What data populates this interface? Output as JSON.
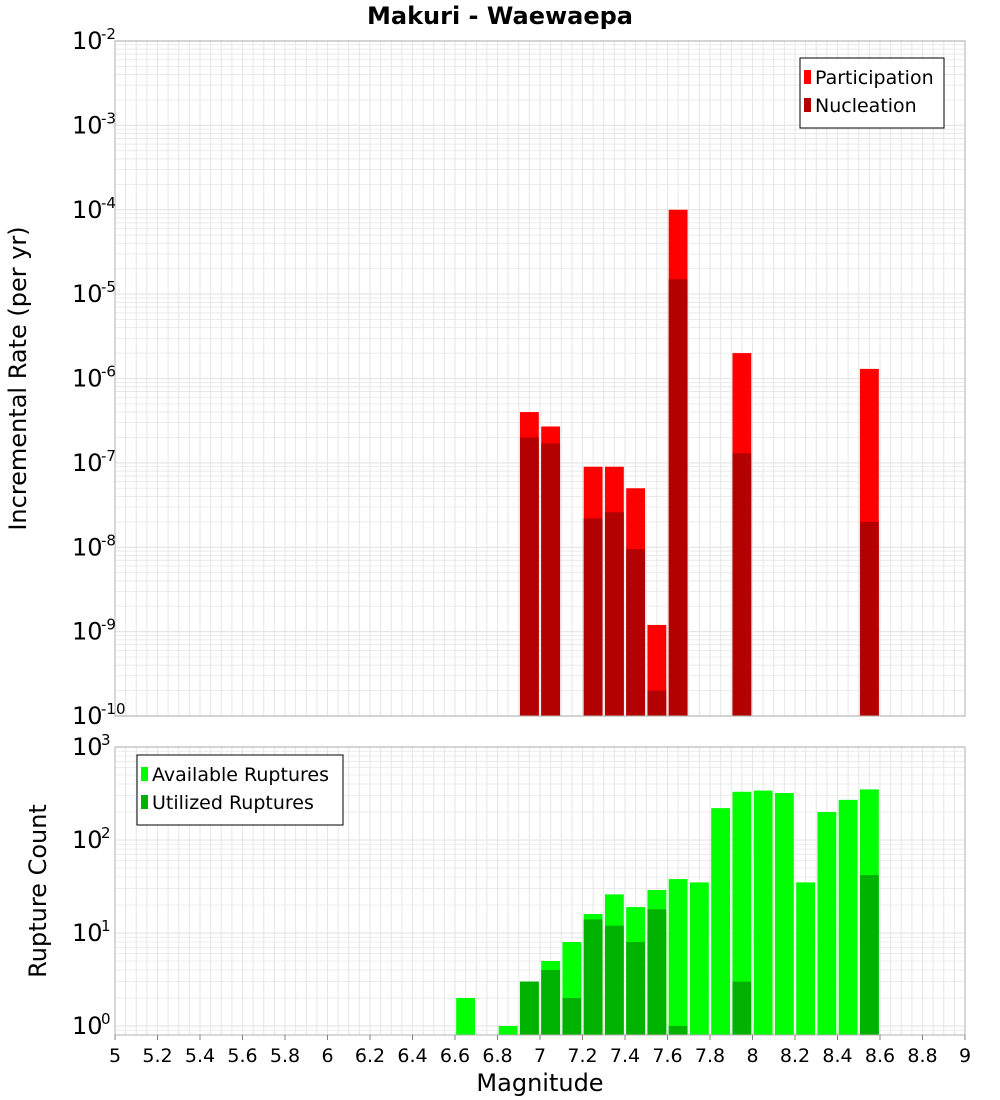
{
  "title": "Makuri - Waewaepa",
  "colors": {
    "participation": "#ff0000",
    "nucleation": "#b30000",
    "available": "#00ff00",
    "utilized": "#00b200",
    "grid": "#e6e6e6",
    "frame": "#b0b0b0"
  },
  "chart_data": [
    {
      "type": "bar",
      "name": "incremental-rate",
      "title": "",
      "xlabel": "",
      "ylabel": "Incremental Rate (per yr)",
      "yscale": "log",
      "xlim": [
        5,
        9
      ],
      "ylim": [
        1e-10,
        0.01
      ],
      "ytick_exponents": [
        -10,
        -9,
        -8,
        -7,
        -6,
        -5,
        -4,
        -3,
        -2
      ],
      "bin_width": 0.1,
      "legend": {
        "placement": "top-right",
        "entries": [
          "Participation",
          "Nucleation"
        ]
      },
      "series": [
        {
          "name": "Participation",
          "color_key": "participation",
          "x": [
            6.95,
            7.05,
            7.25,
            7.35,
            7.45,
            7.55,
            7.65,
            7.95,
            8.55
          ],
          "values": [
            4e-07,
            2.7e-07,
            9e-08,
            9e-08,
            5e-08,
            1.2e-09,
            0.0001,
            2e-06,
            1.3e-06
          ]
        },
        {
          "name": "Nucleation",
          "color_key": "nucleation",
          "x": [
            6.95,
            7.05,
            7.25,
            7.35,
            7.45,
            7.55,
            7.65,
            7.95,
            8.55
          ],
          "values": [
            2e-07,
            1.7e-07,
            2.2e-08,
            2.6e-08,
            9.5e-09,
            2e-10,
            1.5e-05,
            1.3e-07,
            2e-08
          ]
        }
      ]
    },
    {
      "type": "bar",
      "name": "rupture-count",
      "title": "",
      "xlabel": "Magnitude",
      "ylabel": "Rupture Count",
      "yscale": "log",
      "xlim": [
        5,
        9
      ],
      "ylim": [
        0.8,
        1000
      ],
      "ytick_exponents": [
        0,
        1,
        2,
        3
      ],
      "xticks": [
        "5",
        "5.2",
        "5.4",
        "5.6",
        "5.8",
        "6",
        "6.2",
        "6.4",
        "6.6",
        "6.8",
        "7",
        "7.2",
        "7.4",
        "7.6",
        "7.8",
        "8",
        "8.2",
        "8.4",
        "8.6",
        "8.8",
        "9"
      ],
      "bin_width": 0.1,
      "legend": {
        "placement": "top-left",
        "entries": [
          "Available Ruptures",
          "Utilized Ruptures"
        ]
      },
      "series": [
        {
          "name": "Available Ruptures",
          "color_key": "available",
          "x": [
            6.65,
            6.85,
            6.95,
            7.05,
            7.15,
            7.25,
            7.35,
            7.45,
            7.55,
            7.65,
            7.75,
            7.85,
            7.95,
            8.05,
            8.15,
            8.25,
            8.35,
            8.45,
            8.55
          ],
          "values": [
            2,
            1,
            3,
            5,
            8,
            16,
            26,
            19,
            29,
            38,
            35,
            220,
            330,
            340,
            320,
            35,
            200,
            270,
            350
          ]
        },
        {
          "name": "Utilized Ruptures",
          "color_key": "utilized",
          "x": [
            6.95,
            7.05,
            7.15,
            7.25,
            7.35,
            7.45,
            7.55,
            7.65,
            7.95,
            8.55
          ],
          "values": [
            3,
            4,
            2,
            14,
            12,
            8,
            18,
            1,
            3,
            42
          ]
        }
      ]
    }
  ]
}
